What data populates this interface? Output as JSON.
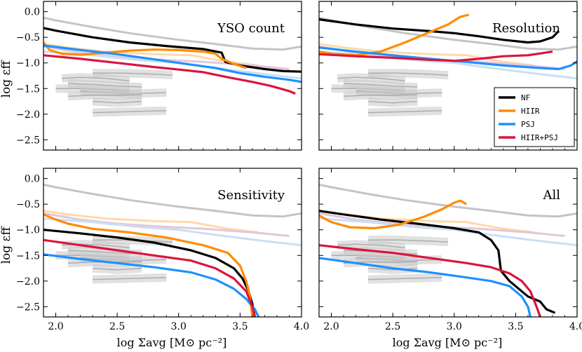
{
  "chart_data": {
    "type": "line",
    "xlabel": "log Σavg [M⊙ pc⁻²]",
    "ylabel": "log εff",
    "xlim": [
      1.9,
      4.0
    ],
    "ylim": [
      -2.7,
      0.2
    ],
    "xticks": [
      "2.0",
      "2.5",
      "3.0",
      "3.5",
      "4.0"
    ],
    "yticks": [
      "0.0",
      "−0.5",
      "−1.0",
      "−1.5",
      "−2.0",
      "−2.5"
    ],
    "colors": {
      "NF": "#000000",
      "HIIR": "#ff8c00",
      "PSJ": "#1e90ff",
      "HIIR+PSJ": "#dc143c"
    },
    "legend": {
      "placement": "center-right",
      "panel": "Resolution",
      "entries": [
        "NF",
        "HIIR",
        "PSJ",
        "HIIR+PSJ"
      ]
    },
    "reference": {
      "gray_upper": [
        [
          1.9,
          -0.12
        ],
        [
          2.0,
          -0.17
        ],
        [
          2.3,
          -0.3
        ],
        [
          2.6,
          -0.42
        ],
        [
          3.0,
          -0.55
        ],
        [
          3.3,
          -0.63
        ],
        [
          3.6,
          -0.72
        ],
        [
          3.85,
          -0.74
        ],
        [
          4.0,
          -0.68
        ]
      ],
      "faint_orange": [
        [
          1.9,
          -0.63
        ],
        [
          2.1,
          -0.7
        ],
        [
          2.4,
          -0.78
        ],
        [
          2.8,
          -0.83
        ],
        [
          3.1,
          -0.85
        ],
        [
          3.4,
          -0.98
        ],
        [
          3.65,
          -1.05
        ]
      ],
      "faint_purple": [
        [
          1.9,
          -0.68
        ],
        [
          2.2,
          -0.8
        ],
        [
          2.5,
          -0.88
        ],
        [
          2.8,
          -0.93
        ],
        [
          3.2,
          -0.98
        ],
        [
          3.6,
          -1.05
        ],
        [
          3.9,
          -1.12
        ]
      ],
      "faint_blue": [
        [
          1.9,
          -0.78
        ],
        [
          2.3,
          -0.85
        ],
        [
          2.7,
          -0.95
        ],
        [
          3.0,
          -1.0
        ],
        [
          3.3,
          -1.1
        ],
        [
          3.7,
          -1.22
        ],
        [
          4.0,
          -1.3
        ]
      ],
      "gray_bands": [
        [
          [
            2.05,
            -1.3
          ],
          [
            2.2,
            -1.28
          ],
          [
            2.4,
            -1.3
          ],
          [
            2.6,
            -1.35
          ]
        ],
        [
          [
            2.1,
            -1.4
          ],
          [
            2.3,
            -1.42
          ],
          [
            2.5,
            -1.45
          ],
          [
            2.7,
            -1.47
          ]
        ],
        [
          [
            2.0,
            -1.5
          ],
          [
            2.2,
            -1.5
          ],
          [
            2.4,
            -1.52
          ],
          [
            2.6,
            -1.55
          ]
        ],
        [
          [
            2.2,
            -1.55
          ],
          [
            2.4,
            -1.57
          ],
          [
            2.6,
            -1.6
          ],
          [
            2.9,
            -1.58
          ]
        ],
        [
          [
            2.1,
            -1.65
          ],
          [
            2.3,
            -1.63
          ],
          [
            2.55,
            -1.63
          ],
          [
            2.7,
            -1.62
          ]
        ],
        [
          [
            2.3,
            -1.2
          ],
          [
            2.55,
            -1.2
          ],
          [
            2.8,
            -1.22
          ],
          [
            2.95,
            -1.24
          ]
        ],
        [
          [
            2.3,
            -1.75
          ],
          [
            2.5,
            -1.78
          ],
          [
            2.7,
            -1.75
          ]
        ],
        [
          [
            2.3,
            -1.97
          ],
          [
            2.6,
            -1.95
          ],
          [
            2.9,
            -1.93
          ]
        ]
      ]
    },
    "panels": [
      {
        "title": "YSO count",
        "series": [
          {
            "name": "NF",
            "points": [
              [
                1.9,
                -0.32
              ],
              [
                2.0,
                -0.37
              ],
              [
                2.3,
                -0.5
              ],
              [
                2.6,
                -0.6
              ],
              [
                2.9,
                -0.67
              ],
              [
                3.2,
                -0.73
              ],
              [
                3.35,
                -0.8
              ],
              [
                3.38,
                -0.98
              ],
              [
                3.5,
                -1.05
              ],
              [
                3.7,
                -1.12
              ],
              [
                3.85,
                -1.16
              ],
              [
                4.0,
                -1.17
              ]
            ]
          },
          {
            "name": "HIIR",
            "points": [
              [
                1.9,
                -0.6
              ],
              [
                1.95,
                -0.75
              ],
              [
                2.05,
                -0.82
              ],
              [
                2.2,
                -0.84
              ],
              [
                2.4,
                -0.8
              ],
              [
                2.6,
                -0.76
              ],
              [
                2.8,
                -0.74
              ],
              [
                3.0,
                -0.75
              ],
              [
                3.2,
                -0.78
              ],
              [
                3.3,
                -0.82
              ],
              [
                3.35,
                -0.92
              ],
              [
                3.45,
                -1.02
              ],
              [
                3.55,
                -1.1
              ]
            ]
          },
          {
            "name": "PSJ",
            "points": [
              [
                1.9,
                -0.66
              ],
              [
                2.2,
                -0.75
              ],
              [
                2.5,
                -0.83
              ],
              [
                2.8,
                -0.93
              ],
              [
                3.0,
                -1.0
              ],
              [
                3.3,
                -1.1
              ],
              [
                3.5,
                -1.2
              ],
              [
                3.7,
                -1.27
              ],
              [
                3.9,
                -1.33
              ],
              [
                4.0,
                -1.37
              ]
            ]
          },
          {
            "name": "HIIR+PSJ",
            "points": [
              [
                1.9,
                -0.85
              ],
              [
                2.2,
                -0.92
              ],
              [
                2.5,
                -1.0
              ],
              [
                2.8,
                -1.08
              ],
              [
                3.0,
                -1.13
              ],
              [
                3.2,
                -1.18
              ],
              [
                3.4,
                -1.28
              ],
              [
                3.6,
                -1.37
              ],
              [
                3.75,
                -1.45
              ],
              [
                3.9,
                -1.55
              ],
              [
                3.95,
                -1.6
              ]
            ]
          }
        ]
      },
      {
        "title": "Resolution",
        "series": [
          {
            "name": "NF",
            "points": [
              [
                1.9,
                -0.15
              ],
              [
                2.2,
                -0.25
              ],
              [
                2.5,
                -0.33
              ],
              [
                2.8,
                -0.38
              ],
              [
                3.0,
                -0.42
              ],
              [
                3.2,
                -0.48
              ],
              [
                3.4,
                -0.55
              ],
              [
                3.6,
                -0.6
              ],
              [
                3.7,
                -0.58
              ],
              [
                3.8,
                -0.5
              ],
              [
                3.85,
                -0.38
              ]
            ]
          },
          {
            "name": "HIIR",
            "points": [
              [
                1.9,
                -0.78
              ],
              [
                2.0,
                -0.82
              ],
              [
                2.2,
                -0.85
              ],
              [
                2.4,
                -0.78
              ],
              [
                2.6,
                -0.6
              ],
              [
                2.8,
                -0.4
              ],
              [
                2.95,
                -0.25
              ],
              [
                3.05,
                -0.1
              ],
              [
                3.12,
                -0.06
              ]
            ]
          },
          {
            "name": "PSJ",
            "points": [
              [
                1.9,
                -0.7
              ],
              [
                2.2,
                -0.78
              ],
              [
                2.5,
                -0.85
              ],
              [
                2.8,
                -0.92
              ],
              [
                3.1,
                -0.98
              ],
              [
                3.4,
                -1.05
              ],
              [
                3.7,
                -1.1
              ],
              [
                3.85,
                -1.12
              ],
              [
                3.95,
                -1.05
              ],
              [
                4.0,
                -0.97
              ]
            ]
          },
          {
            "name": "HIIR+PSJ",
            "points": [
              [
                1.9,
                -0.83
              ],
              [
                2.2,
                -0.87
              ],
              [
                2.5,
                -0.9
              ],
              [
                2.8,
                -0.94
              ],
              [
                3.0,
                -0.96
              ],
              [
                3.2,
                -0.92
              ],
              [
                3.4,
                -0.87
              ],
              [
                3.6,
                -0.85
              ],
              [
                3.8,
                -0.78
              ]
            ]
          }
        ]
      },
      {
        "title": "Sensitivity",
        "series": [
          {
            "name": "NF",
            "points": [
              [
                1.9,
                -1.0
              ],
              [
                2.2,
                -1.07
              ],
              [
                2.5,
                -1.15
              ],
              [
                2.8,
                -1.25
              ],
              [
                3.1,
                -1.4
              ],
              [
                3.3,
                -1.55
              ],
              [
                3.45,
                -1.75
              ],
              [
                3.52,
                -1.95
              ],
              [
                3.57,
                -2.2
              ],
              [
                3.6,
                -2.45
              ],
              [
                3.62,
                -2.7
              ]
            ]
          },
          {
            "name": "HIIR",
            "points": [
              [
                1.9,
                -0.7
              ],
              [
                2.0,
                -0.8
              ],
              [
                2.1,
                -0.88
              ],
              [
                2.3,
                -0.98
              ],
              [
                2.6,
                -1.05
              ],
              [
                2.9,
                -1.15
              ],
              [
                3.2,
                -1.3
              ],
              [
                3.4,
                -1.45
              ],
              [
                3.5,
                -1.7
              ],
              [
                3.55,
                -2.0
              ],
              [
                3.58,
                -2.3
              ],
              [
                3.6,
                -2.7
              ]
            ]
          },
          {
            "name": "PSJ",
            "points": [
              [
                1.9,
                -1.48
              ],
              [
                2.2,
                -1.57
              ],
              [
                2.5,
                -1.65
              ],
              [
                2.8,
                -1.73
              ],
              [
                3.1,
                -1.83
              ],
              [
                3.3,
                -1.97
              ],
              [
                3.45,
                -2.15
              ],
              [
                3.55,
                -2.35
              ],
              [
                3.62,
                -2.55
              ],
              [
                3.65,
                -2.7
              ]
            ]
          },
          {
            "name": "HIIR+PSJ",
            "points": [
              [
                1.9,
                -1.2
              ],
              [
                2.2,
                -1.3
              ],
              [
                2.5,
                -1.4
              ],
              [
                2.8,
                -1.5
              ],
              [
                3.1,
                -1.6
              ],
              [
                3.3,
                -1.75
              ],
              [
                3.45,
                -1.95
              ],
              [
                3.55,
                -2.2
              ],
              [
                3.6,
                -2.5
              ],
              [
                3.62,
                -2.7
              ]
            ]
          }
        ]
      },
      {
        "title": "All",
        "series": [
          {
            "name": "NF",
            "points": [
              [
                1.9,
                -0.63
              ],
              [
                2.1,
                -0.7
              ],
              [
                2.4,
                -0.8
              ],
              [
                2.7,
                -0.88
              ],
              [
                3.0,
                -0.97
              ],
              [
                3.2,
                -1.05
              ],
              [
                3.3,
                -1.2
              ],
              [
                3.36,
                -1.4
              ],
              [
                3.38,
                -1.8
              ],
              [
                3.45,
                -2.0
              ],
              [
                3.6,
                -2.3
              ],
              [
                3.7,
                -2.4
              ],
              [
                3.75,
                -2.55
              ],
              [
                3.82,
                -2.62
              ]
            ]
          },
          {
            "name": "HIIR",
            "points": [
              [
                1.9,
                -0.72
              ],
              [
                2.0,
                -0.85
              ],
              [
                2.15,
                -0.95
              ],
              [
                2.35,
                -0.97
              ],
              [
                2.55,
                -0.9
              ],
              [
                2.75,
                -0.75
              ],
              [
                2.9,
                -0.6
              ],
              [
                3.0,
                -0.47
              ],
              [
                3.05,
                -0.43
              ],
              [
                3.1,
                -0.5
              ]
            ]
          },
          {
            "name": "PSJ",
            "points": [
              [
                1.9,
                -1.55
              ],
              [
                2.2,
                -1.65
              ],
              [
                2.5,
                -1.75
              ],
              [
                2.8,
                -1.83
              ],
              [
                3.1,
                -1.93
              ],
              [
                3.3,
                -2.0
              ],
              [
                3.45,
                -2.1
              ],
              [
                3.55,
                -2.3
              ],
              [
                3.6,
                -2.5
              ],
              [
                3.62,
                -2.7
              ]
            ]
          },
          {
            "name": "HIIR+PSJ",
            "points": [
              [
                1.9,
                -1.3
              ],
              [
                2.2,
                -1.38
              ],
              [
                2.5,
                -1.45
              ],
              [
                2.8,
                -1.55
              ],
              [
                3.1,
                -1.65
              ],
              [
                3.3,
                -1.73
              ],
              [
                3.45,
                -1.85
              ],
              [
                3.55,
                -2.0
              ],
              [
                3.62,
                -2.2
              ],
              [
                3.67,
                -2.5
              ],
              [
                3.7,
                -2.7
              ]
            ]
          }
        ]
      }
    ]
  }
}
